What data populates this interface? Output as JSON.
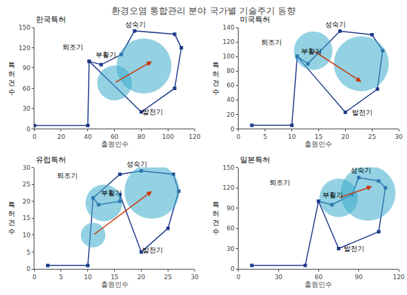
{
  "title": "환경오염 통합관리 분야 국가별 기술주기 동향",
  "chart_data": [
    {
      "type": "line",
      "title": "한국특허",
      "xlabel": "출원인수",
      "ylabel": "특\n허\n건\n수",
      "xlim": [
        0,
        120
      ],
      "ylim": [
        0,
        150
      ],
      "xticks": [
        0,
        20,
        40,
        60,
        80,
        100,
        120
      ],
      "yticks": [
        0,
        30,
        60,
        90,
        120,
        150
      ],
      "grid": false,
      "series": [
        {
          "type": "line",
          "marker": "square",
          "line_style": "solid",
          "color": "#1E3A8A",
          "x": [
            0,
            40,
            41,
            50,
            65,
            75,
            105,
            110,
            105,
            80,
            41
          ],
          "values": [
            5,
            5,
            100,
            95,
            110,
            145,
            140,
            120,
            60,
            25,
            100
          ]
        },
        {
          "type": "bubble",
          "color": "#3AACCC",
          "x": [
            82,
            60
          ],
          "values": [
            93,
            68
          ],
          "sizes": [
            4500,
            1800
          ]
        }
      ],
      "arrow": {
        "from": [
          60,
          68
        ],
        "to": [
          88,
          100
        ],
        "color": "#CC3300"
      },
      "annotations": [
        {
          "text": "성숙기",
          "x": 67,
          "y": 147
        },
        {
          "text": "퇴조기",
          "x": 20,
          "y": 113
        },
        {
          "text": "부활기",
          "x": 45,
          "y": 102
        },
        {
          "text": "발전기",
          "x": 80,
          "y": 18
        }
      ]
    },
    {
      "type": "line",
      "title": "미국특허",
      "xlabel": "출원인수",
      "ylabel": "특\n허\n건\n수",
      "xlim": [
        0,
        30
      ],
      "ylim": [
        0,
        140
      ],
      "xticks": [
        0,
        5,
        10,
        15,
        20,
        25,
        30
      ],
      "yticks": [
        0,
        20,
        40,
        60,
        80,
        100,
        120,
        140
      ],
      "grid": false,
      "series": [
        {
          "type": "line",
          "marker": "square",
          "line_style": "solid",
          "color": "#1E3A8A",
          "x": [
            2.5,
            10,
            11,
            13,
            15,
            19,
            25,
            27,
            26,
            20,
            11
          ],
          "values": [
            5,
            5,
            100,
            90,
            105,
            135,
            130,
            108,
            55,
            23,
            100
          ]
        },
        {
          "type": "bubble",
          "color": "#3AACCC",
          "x": [
            23,
            14
          ],
          "values": [
            90,
            108
          ],
          "sizes": [
            4500,
            2200
          ]
        }
      ],
      "arrow": {
        "from": [
          14,
          108
        ],
        "to": [
          23,
          65
        ],
        "color": "#CC3300"
      },
      "annotations": [
        {
          "text": "성숙기",
          "x": 16,
          "y": 137
        },
        {
          "text": "퇴조기",
          "x": 4,
          "y": 112
        },
        {
          "text": "부활기",
          "x": 11.5,
          "y": 100
        },
        {
          "text": "발전기",
          "x": 21,
          "y": 16
        }
      ]
    },
    {
      "type": "line",
      "title": "유럽특허",
      "xlabel": "출원인수",
      "ylabel": "특\n허\n건\n수",
      "xlim": [
        0,
        30
      ],
      "ylim": [
        0,
        30
      ],
      "xticks": [
        0,
        5,
        10,
        15,
        20,
        25,
        30
      ],
      "yticks": [
        0,
        5,
        10,
        15,
        20,
        25,
        30
      ],
      "grid": false,
      "series": [
        {
          "type": "line",
          "marker": "square",
          "line_style": "solid",
          "color": "#1E3A8A",
          "x": [
            2.5,
            10,
            11,
            12,
            16,
            16,
            20,
            25,
            27,
            26,
            20,
            16,
            11
          ],
          "values": [
            1,
            1,
            21,
            19,
            20,
            22,
            5,
            12,
            23,
            28,
            29,
            28,
            21
          ]
        },
        {
          "type": "bubble",
          "color": "#3AACCC",
          "x": [
            22,
            13.0,
            11
          ],
          "values": [
            23,
            19.5,
            10
          ],
          "sizes": [
            4500,
            2000,
            900
          ]
        }
      ],
      "arrow": {
        "from": [
          11,
          10
        ],
        "to": [
          22,
          23
        ],
        "color": "#CC3300"
      },
      "annotations": [
        {
          "text": "성숙기",
          "x": 17,
          "y": 29.5
        },
        {
          "text": "퇴조기",
          "x": 4,
          "y": 26
        },
        {
          "text": "부활기",
          "x": 12.2,
          "y": 21
        },
        {
          "text": "발전기",
          "x": 20,
          "y": 4
        }
      ]
    },
    {
      "type": "line",
      "title": "일본특허",
      "xlabel": "출원인수",
      "ylabel": "특\n허\n건\n수",
      "xlim": [
        0,
        120
      ],
      "ylim": [
        0,
        150
      ],
      "xticks": [
        0,
        30,
        60,
        90,
        120
      ],
      "yticks": [
        0,
        30,
        60,
        90,
        120,
        150
      ],
      "grid": false,
      "series": [
        {
          "type": "line",
          "marker": "square",
          "line_style": "solid",
          "color": "#1E3A8A",
          "x": [
            10,
            50,
            60,
            70,
            85,
            90,
            105,
            110,
            105,
            75,
            60
          ],
          "values": [
            5,
            5,
            100,
            95,
            110,
            135,
            130,
            120,
            55,
            30,
            100
          ]
        },
        {
          "type": "bubble",
          "color": "#3AACCC",
          "x": [
            97,
            75
          ],
          "values": [
            112,
            105
          ],
          "sizes": [
            4500,
            2200
          ]
        }
      ],
      "arrow": {
        "from": [
          75,
          105
        ],
        "to": [
          100,
          122
        ],
        "color": "#CC3300"
      },
      "annotations": [
        {
          "text": "성숙기",
          "x": 83,
          "y": 138
        },
        {
          "text": "퇴조기",
          "x": 22,
          "y": 120
        },
        {
          "text": "부활기",
          "x": 62,
          "y": 102
        },
        {
          "text": "발전기",
          "x": 78,
          "y": 22
        }
      ]
    }
  ]
}
